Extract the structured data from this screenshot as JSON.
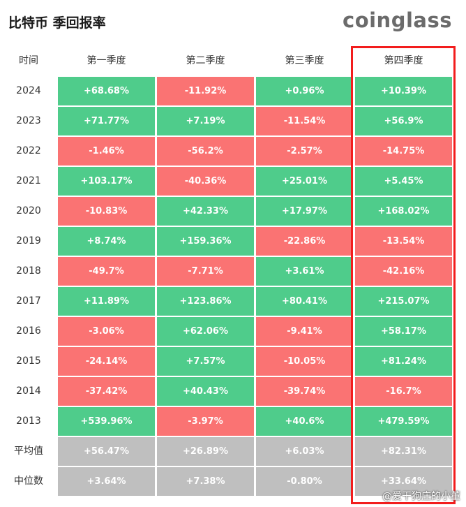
{
  "title": "比特币 季回报率",
  "logo": "coinglass",
  "watermark": "@爱干狗庄的小董",
  "colors": {
    "positive": "#4fcc8b",
    "negative": "#fa7373",
    "summary": "#bfbfbf"
  },
  "chart_data": {
    "type": "table",
    "corner_label": "时间",
    "columns": [
      "第一季度",
      "第二季度",
      "第三季度",
      "第四季度"
    ],
    "highlighted_column": "第四季度",
    "rows": [
      {
        "label": "2024",
        "values": [
          "+68.68%",
          "-11.92%",
          "+0.96%",
          "+10.39%"
        ],
        "kind": "year"
      },
      {
        "label": "2023",
        "values": [
          "+71.77%",
          "+7.19%",
          "-11.54%",
          "+56.9%"
        ],
        "kind": "year"
      },
      {
        "label": "2022",
        "values": [
          "-1.46%",
          "-56.2%",
          "-2.57%",
          "-14.75%"
        ],
        "kind": "year"
      },
      {
        "label": "2021",
        "values": [
          "+103.17%",
          "-40.36%",
          "+25.01%",
          "+5.45%"
        ],
        "kind": "year"
      },
      {
        "label": "2020",
        "values": [
          "-10.83%",
          "+42.33%",
          "+17.97%",
          "+168.02%"
        ],
        "kind": "year"
      },
      {
        "label": "2019",
        "values": [
          "+8.74%",
          "+159.36%",
          "-22.86%",
          "-13.54%"
        ],
        "kind": "year"
      },
      {
        "label": "2018",
        "values": [
          "-49.7%",
          "-7.71%",
          "+3.61%",
          "-42.16%"
        ],
        "kind": "year"
      },
      {
        "label": "2017",
        "values": [
          "+11.89%",
          "+123.86%",
          "+80.41%",
          "+215.07%"
        ],
        "kind": "year"
      },
      {
        "label": "2016",
        "values": [
          "-3.06%",
          "+62.06%",
          "-9.41%",
          "+58.17%"
        ],
        "kind": "year"
      },
      {
        "label": "2015",
        "values": [
          "-24.14%",
          "+7.57%",
          "-10.05%",
          "+81.24%"
        ],
        "kind": "year"
      },
      {
        "label": "2014",
        "values": [
          "-37.42%",
          "+40.43%",
          "-39.74%",
          "-16.7%"
        ],
        "kind": "year"
      },
      {
        "label": "2013",
        "values": [
          "+539.96%",
          "-3.97%",
          "+40.6%",
          "+479.59%"
        ],
        "kind": "year"
      },
      {
        "label": "平均值",
        "values": [
          "+56.47%",
          "+26.89%",
          "+6.03%",
          "+82.31%"
        ],
        "kind": "summary"
      },
      {
        "label": "中位数",
        "values": [
          "+3.64%",
          "+7.38%",
          "-0.80%",
          "+33.64%"
        ],
        "kind": "summary"
      }
    ]
  }
}
